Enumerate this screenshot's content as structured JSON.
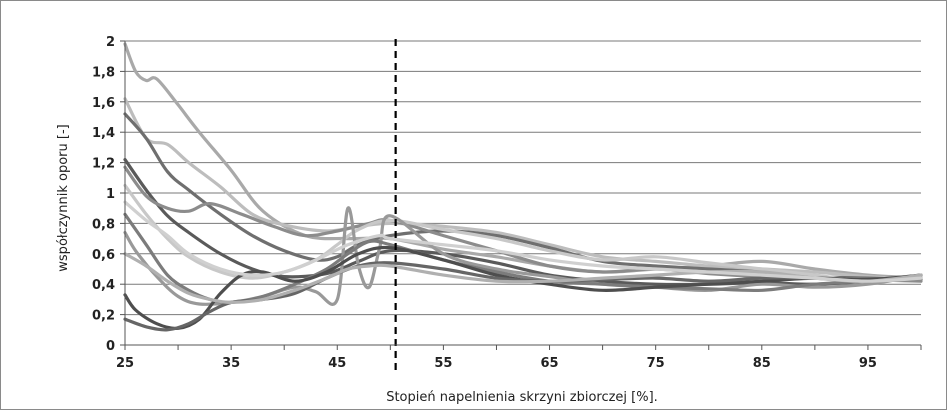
{
  "chart_data": {
    "type": "line",
    "title": "",
    "xlabel": "Stopień napelnienia skrzyni zbiorczej [%].",
    "ylabel": "współczynnik oporu [-]",
    "xlim": [
      25,
      100
    ],
    "ylim": [
      0,
      2
    ],
    "x_ticks": [
      25,
      35,
      45,
      55,
      65,
      75,
      85,
      95
    ],
    "x_tick_labels": [
      "25",
      "35",
      "45",
      "55",
      "65",
      "75",
      "85",
      "95"
    ],
    "y_ticks": [
      0,
      0.2,
      0.4,
      0.6,
      0.8,
      1.0,
      1.2,
      1.4,
      1.6,
      1.8,
      2.0
    ],
    "y_tick_labels": [
      "0",
      "0,2",
      "0,4",
      "0,6",
      "0,8",
      "1",
      "1,2",
      "1,4",
      "1,6",
      "1,8",
      "2"
    ],
    "grid": "horizontal",
    "legend": "none",
    "reference_line": {
      "x": 50.5,
      "style": "dashed",
      "color": "#000000"
    },
    "series": [
      {
        "color": "#a9a9a9",
        "x": [
          25,
          26,
          27,
          28,
          30,
          32,
          35,
          38,
          42,
          46,
          50,
          55,
          60,
          65,
          70,
          75,
          80,
          85,
          90,
          95,
          100
        ],
        "y": [
          1.98,
          1.8,
          1.74,
          1.75,
          1.58,
          1.4,
          1.15,
          0.88,
          0.72,
          0.7,
          0.7,
          0.63,
          0.58,
          0.52,
          0.48,
          0.5,
          0.52,
          0.55,
          0.5,
          0.46,
          0.44
        ]
      },
      {
        "color": "#bdbdbd",
        "x": [
          25,
          27,
          29,
          31,
          34,
          37,
          40,
          44,
          47,
          50,
          55,
          60,
          65,
          70,
          75,
          80,
          85,
          90,
          95,
          100
        ],
        "y": [
          1.62,
          1.36,
          1.32,
          1.2,
          1.04,
          0.86,
          0.79,
          0.75,
          0.78,
          0.8,
          0.78,
          0.74,
          0.66,
          0.58,
          0.55,
          0.52,
          0.5,
          0.48,
          0.45,
          0.43
        ]
      },
      {
        "color": "#6f6f6f",
        "x": [
          25,
          27,
          29,
          31,
          34,
          37,
          40,
          43,
          45,
          47,
          50,
          55,
          60,
          65,
          70,
          75,
          80,
          85,
          90,
          95,
          100
        ],
        "y": [
          1.52,
          1.36,
          1.14,
          1.02,
          0.86,
          0.72,
          0.62,
          0.56,
          0.58,
          0.66,
          0.72,
          0.75,
          0.72,
          0.64,
          0.55,
          0.52,
          0.5,
          0.48,
          0.45,
          0.44,
          0.43
        ]
      },
      {
        "color": "#5a5a5a",
        "x": [
          25,
          27,
          29,
          31,
          34,
          37,
          40,
          44,
          47,
          50,
          55,
          60,
          65,
          70,
          75,
          80,
          85,
          90,
          95,
          100
        ],
        "y": [
          1.22,
          1.02,
          0.85,
          0.74,
          0.6,
          0.5,
          0.45,
          0.47,
          0.55,
          0.62,
          0.6,
          0.54,
          0.46,
          0.42,
          0.4,
          0.4,
          0.41,
          0.4,
          0.42,
          0.44
        ]
      },
      {
        "color": "#8c8c8c",
        "x": [
          25,
          27,
          29,
          31,
          33,
          36,
          39,
          42,
          45,
          48,
          50,
          55,
          60,
          65,
          70,
          75,
          80,
          85,
          90,
          95,
          100
        ],
        "y": [
          1.17,
          0.98,
          0.9,
          0.88,
          0.93,
          0.86,
          0.78,
          0.72,
          0.75,
          0.8,
          0.82,
          0.72,
          0.62,
          0.52,
          0.48,
          0.5,
          0.47,
          0.45,
          0.44,
          0.43,
          0.42
        ]
      },
      {
        "color": "#c8c8c8",
        "x": [
          25,
          27,
          29,
          31,
          34,
          37,
          40,
          43,
          45,
          47,
          50,
          55,
          60,
          65,
          70,
          75,
          80,
          85,
          90,
          95,
          100
        ],
        "y": [
          1.05,
          0.86,
          0.7,
          0.58,
          0.48,
          0.44,
          0.48,
          0.56,
          0.66,
          0.76,
          0.82,
          0.76,
          0.7,
          0.62,
          0.56,
          0.58,
          0.54,
          0.5,
          0.46,
          0.42,
          0.46
        ]
      },
      {
        "color": "#999999",
        "x": [
          25,
          26,
          28,
          30,
          32,
          35,
          38,
          41,
          43,
          45,
          46,
          47,
          48,
          49,
          50,
          55,
          60,
          65,
          70,
          75,
          80,
          85,
          90,
          95,
          100
        ],
        "y": [
          0.74,
          0.62,
          0.45,
          0.32,
          0.27,
          0.28,
          0.32,
          0.38,
          0.35,
          0.3,
          0.9,
          0.52,
          0.38,
          0.64,
          0.85,
          0.6,
          0.5,
          0.45,
          0.4,
          0.38,
          0.36,
          0.4,
          0.38,
          0.4,
          0.46
        ]
      },
      {
        "color": "#7c7c7c",
        "x": [
          25,
          27,
          29,
          31,
          33,
          35,
          38,
          41,
          44,
          46,
          48,
          50,
          55,
          60,
          65,
          70,
          75,
          80,
          85,
          90,
          95,
          100
        ],
        "y": [
          0.86,
          0.66,
          0.46,
          0.36,
          0.3,
          0.28,
          0.32,
          0.4,
          0.5,
          0.6,
          0.68,
          0.66,
          0.56,
          0.48,
          0.42,
          0.4,
          0.38,
          0.37,
          0.36,
          0.4,
          0.42,
          0.44
        ]
      },
      {
        "color": "#4e4e4e",
        "x": [
          25,
          26,
          28,
          30,
          32,
          34,
          36,
          38,
          41,
          44,
          47,
          50,
          55,
          60,
          65,
          70,
          75,
          80,
          85,
          90,
          95,
          100
        ],
        "y": [
          0.33,
          0.23,
          0.14,
          0.11,
          0.17,
          0.34,
          0.46,
          0.48,
          0.42,
          0.48,
          0.6,
          0.64,
          0.56,
          0.46,
          0.4,
          0.36,
          0.38,
          0.4,
          0.42,
          0.44,
          0.43,
          0.46
        ]
      },
      {
        "color": "#666666",
        "x": [
          25,
          27,
          29,
          31,
          33,
          35,
          38,
          41,
          44,
          47,
          50,
          55,
          60,
          65,
          70,
          75,
          80,
          85,
          90,
          95,
          100
        ],
        "y": [
          0.17,
          0.12,
          0.1,
          0.14,
          0.22,
          0.28,
          0.3,
          0.34,
          0.44,
          0.52,
          0.54,
          0.5,
          0.44,
          0.42,
          0.43,
          0.44,
          0.42,
          0.44,
          0.44,
          0.42,
          0.46
        ]
      },
      {
        "color": "#b0b0b0",
        "x": [
          25,
          27,
          29,
          31,
          33,
          35,
          38,
          41,
          44,
          46,
          48,
          50,
          55,
          60,
          65,
          70,
          75,
          80,
          85,
          90,
          95,
          100
        ],
        "y": [
          0.6,
          0.52,
          0.42,
          0.34,
          0.3,
          0.28,
          0.3,
          0.36,
          0.44,
          0.5,
          0.52,
          0.52,
          0.46,
          0.42,
          0.42,
          0.44,
          0.46,
          0.48,
          0.48,
          0.44,
          0.42,
          0.46
        ]
      },
      {
        "color": "#d0d0d0",
        "x": [
          25,
          27,
          29,
          31,
          34,
          37,
          40,
          43,
          46,
          49,
          50,
          55,
          60,
          65,
          70,
          75,
          80,
          85,
          90,
          95,
          100
        ],
        "y": [
          0.94,
          0.82,
          0.72,
          0.6,
          0.5,
          0.46,
          0.48,
          0.56,
          0.66,
          0.72,
          0.7,
          0.66,
          0.62,
          0.56,
          0.52,
          0.5,
          0.48,
          0.46,
          0.44,
          0.42,
          0.44
        ]
      }
    ]
  }
}
